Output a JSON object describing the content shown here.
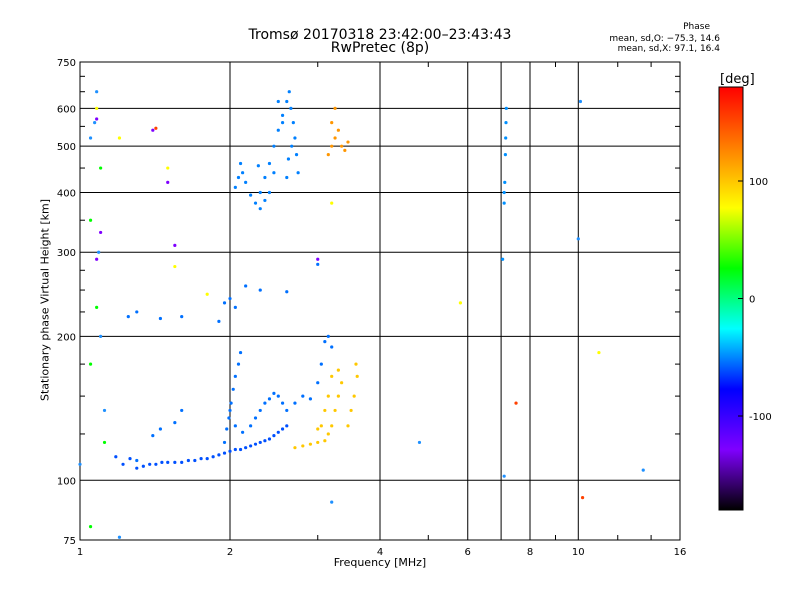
{
  "header": {
    "title_line1": "Tromsø 20170318 23:42:00–23:43:43",
    "title_line2": "RwPretec (8p)",
    "phase_title": "Phase",
    "phase_o": "mean, sd,O: −75.3, 14.6",
    "phase_x": "mean, sd,X:  97.1, 16.4"
  },
  "colorbar": {
    "unit": "[deg]",
    "ticks": [
      "100",
      "0",
      "-100"
    ],
    "tick_values": [
      100,
      0,
      -100
    ],
    "range": [
      -180,
      180
    ],
    "colors": [
      "#000000",
      "#7f00ff",
      "#0000ff",
      "#00ffff",
      "#00ff00",
      "#ffff00",
      "#ff7f00",
      "#ff0000"
    ]
  },
  "chart_data": {
    "type": "scatter",
    "xlabel": "Frequency [MHz]",
    "ylabel": "Stationary phase Virtual Height [km]",
    "xscale": "log",
    "yscale": "log",
    "xlim": [
      1,
      16
    ],
    "ylim": [
      75,
      750
    ],
    "xticks": [
      1,
      2,
      4,
      6,
      8,
      10,
      16
    ],
    "xtick_labels": [
      "1",
      "2",
      "4",
      "6",
      "8",
      "10",
      "16"
    ],
    "yticks": [
      75,
      100,
      200,
      300,
      400,
      500,
      600,
      750
    ],
    "ytick_labels": [
      "75",
      "100",
      "200",
      "300",
      "400",
      "500",
      "600",
      "750"
    ],
    "grid": true,
    "series": [
      {
        "color": "#0050ff",
        "values": [
          [
            1.18,
            112
          ],
          [
            1.22,
            108
          ],
          [
            1.26,
            111
          ],
          [
            1.3,
            106
          ],
          [
            1.34,
            107
          ],
          [
            1.38,
            108
          ],
          [
            1.42,
            108
          ],
          [
            1.46,
            109
          ],
          [
            1.5,
            109
          ],
          [
            1.55,
            109
          ],
          [
            1.6,
            109
          ],
          [
            1.65,
            110
          ],
          [
            1.7,
            110
          ],
          [
            1.75,
            111
          ],
          [
            1.8,
            111
          ],
          [
            1.85,
            112
          ],
          [
            1.9,
            113
          ],
          [
            1.95,
            114
          ],
          [
            2.0,
            115
          ],
          [
            2.05,
            116
          ],
          [
            2.1,
            116
          ],
          [
            2.15,
            117
          ],
          [
            2.2,
            118
          ],
          [
            2.25,
            119
          ],
          [
            2.3,
            120
          ],
          [
            2.35,
            121
          ],
          [
            2.4,
            122
          ],
          [
            2.45,
            124
          ],
          [
            2.5,
            126
          ],
          [
            2.55,
            128
          ],
          [
            2.6,
            130
          ]
        ]
      },
      {
        "color": "#0070ff",
        "values": [
          [
            1.3,
            110
          ],
          [
            1.4,
            124
          ],
          [
            1.45,
            128
          ],
          [
            1.55,
            132
          ],
          [
            1.6,
            140
          ],
          [
            1.95,
            120
          ],
          [
            1.97,
            128
          ],
          [
            1.99,
            135
          ],
          [
            2.01,
            145
          ],
          [
            2.03,
            155
          ],
          [
            2.05,
            165
          ],
          [
            2.08,
            175
          ],
          [
            2.1,
            185
          ],
          [
            2.0,
            140
          ],
          [
            2.05,
            130
          ],
          [
            2.12,
            126
          ],
          [
            2.2,
            130
          ],
          [
            2.25,
            135
          ],
          [
            2.3,
            140
          ],
          [
            2.35,
            145
          ],
          [
            2.4,
            148
          ],
          [
            2.45,
            152
          ],
          [
            2.5,
            150
          ],
          [
            2.55,
            145
          ],
          [
            2.6,
            140
          ],
          [
            2.7,
            145
          ],
          [
            2.8,
            150
          ],
          [
            2.9,
            148
          ],
          [
            3.0,
            160
          ],
          [
            3.05,
            175
          ],
          [
            3.1,
            195
          ],
          [
            3.15,
            200
          ],
          [
            3.2,
            190
          ],
          [
            1.9,
            215
          ],
          [
            1.95,
            235
          ],
          [
            2.0,
            240
          ],
          [
            2.05,
            230
          ],
          [
            2.15,
            255
          ],
          [
            2.3,
            250
          ],
          [
            2.6,
            248
          ],
          [
            1.6,
            220
          ],
          [
            1.45,
            218
          ],
          [
            1.3,
            225
          ],
          [
            1.25,
            220
          ],
          [
            3.0,
            283
          ]
        ]
      },
      {
        "color": "#0080ff",
        "values": [
          [
            2.05,
            410
          ],
          [
            2.08,
            430
          ],
          [
            2.1,
            460
          ],
          [
            2.12,
            440
          ],
          [
            2.15,
            420
          ],
          [
            2.2,
            395
          ],
          [
            2.25,
            380
          ],
          [
            2.3,
            400
          ],
          [
            2.35,
            430
          ],
          [
            2.4,
            460
          ],
          [
            2.45,
            500
          ],
          [
            2.5,
            540
          ],
          [
            2.55,
            580
          ],
          [
            2.6,
            620
          ],
          [
            2.63,
            650
          ],
          [
            2.65,
            600
          ],
          [
            2.68,
            560
          ],
          [
            2.7,
            520
          ],
          [
            2.72,
            480
          ],
          [
            2.74,
            440
          ],
          [
            2.5,
            620
          ],
          [
            2.55,
            560
          ],
          [
            2.45,
            440
          ],
          [
            2.4,
            400
          ],
          [
            2.35,
            385
          ],
          [
            2.3,
            370
          ],
          [
            2.28,
            455
          ],
          [
            2.6,
            430
          ],
          [
            2.62,
            470
          ],
          [
            2.66,
            500
          ]
        ]
      },
      {
        "color": "#ffc800",
        "values": [
          [
            2.7,
            117
          ],
          [
            2.8,
            118
          ],
          [
            2.9,
            119
          ],
          [
            3.0,
            120
          ],
          [
            3.1,
            121
          ],
          [
            3.15,
            125
          ],
          [
            3.2,
            130
          ],
          [
            3.25,
            140
          ],
          [
            3.3,
            150
          ],
          [
            3.35,
            160
          ],
          [
            3.3,
            170
          ],
          [
            3.2,
            165
          ],
          [
            3.15,
            150
          ],
          [
            3.1,
            140
          ],
          [
            3.05,
            130
          ],
          [
            3.0,
            128
          ],
          [
            3.5,
            140
          ],
          [
            3.55,
            150
          ],
          [
            3.6,
            165
          ],
          [
            3.58,
            175
          ],
          [
            3.45,
            130
          ]
        ]
      },
      {
        "color": "#ff9600",
        "values": [
          [
            3.15,
            480
          ],
          [
            3.2,
            500
          ],
          [
            3.25,
            520
          ],
          [
            3.3,
            540
          ],
          [
            3.35,
            500
          ],
          [
            3.4,
            490
          ],
          [
            3.45,
            510
          ],
          [
            3.2,
            560
          ],
          [
            3.25,
            600
          ]
        ]
      },
      {
        "color": "#0090ff",
        "values": [
          [
            7.1,
            400
          ],
          [
            7.12,
            420
          ],
          [
            7.14,
            480
          ],
          [
            7.15,
            520
          ],
          [
            7.16,
            560
          ],
          [
            7.17,
            600
          ],
          [
            7.1,
            380
          ],
          [
            7.05,
            290
          ]
        ]
      },
      {
        "color": "#1e90ff",
        "values": [
          [
            1.08,
            650
          ],
          [
            1.07,
            560
          ],
          [
            1.05,
            520
          ],
          [
            1.09,
            300
          ],
          [
            1.1,
            200
          ],
          [
            1.12,
            140
          ],
          [
            1.0,
            108
          ],
          [
            1.2,
            76
          ],
          [
            4.8,
            120
          ],
          [
            7.1,
            102
          ],
          [
            10.0,
            320
          ],
          [
            10.1,
            620
          ],
          [
            13.5,
            105
          ],
          [
            3.2,
            90
          ]
        ]
      },
      {
        "color": "#ffff00",
        "values": [
          [
            1.08,
            600
          ],
          [
            1.2,
            520
          ],
          [
            1.5,
            450
          ],
          [
            1.55,
            280
          ],
          [
            3.2,
            380
          ],
          [
            5.8,
            235
          ],
          [
            11.0,
            185
          ],
          [
            1.8,
            245
          ]
        ]
      },
      {
        "color": "#7f00ff",
        "values": [
          [
            1.08,
            570
          ],
          [
            1.4,
            540
          ],
          [
            1.5,
            420
          ],
          [
            1.55,
            310
          ],
          [
            1.1,
            330
          ],
          [
            1.08,
            290
          ],
          [
            3.0,
            290
          ]
        ]
      },
      {
        "color": "#00ff00",
        "values": [
          [
            1.05,
            350
          ],
          [
            1.1,
            450
          ],
          [
            1.08,
            230
          ],
          [
            1.12,
            120
          ],
          [
            1.05,
            175
          ],
          [
            1.05,
            80
          ]
        ]
      },
      {
        "color": "#ff4000",
        "values": [
          [
            7.5,
            145
          ],
          [
            10.2,
            92
          ],
          [
            1.42,
            545
          ]
        ]
      }
    ]
  }
}
